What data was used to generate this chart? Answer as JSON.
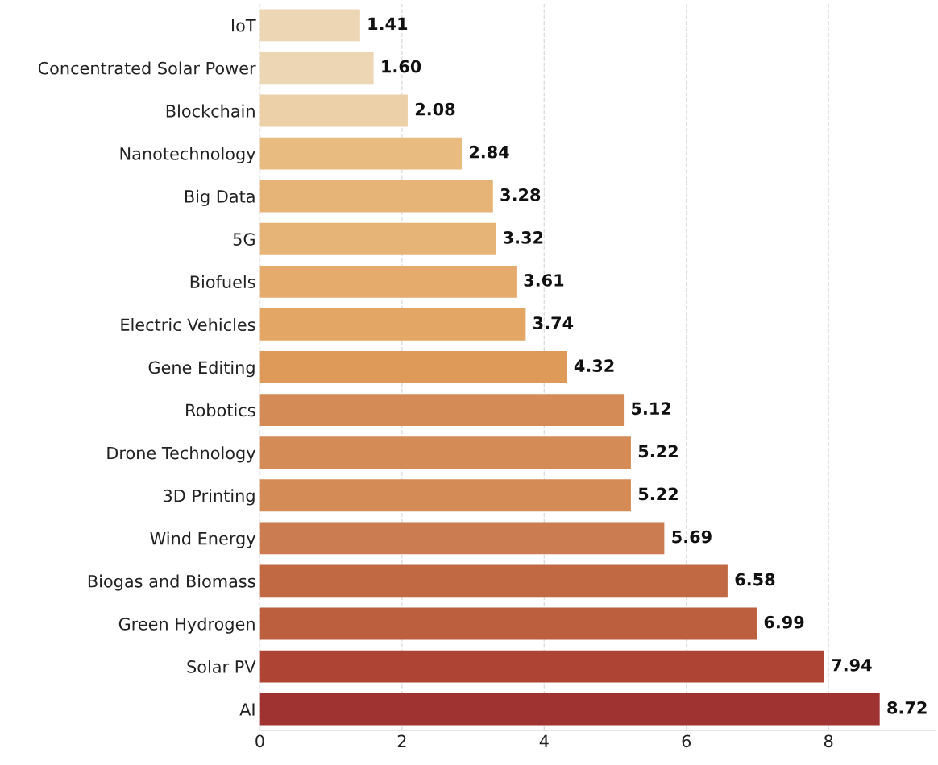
{
  "chart_data": {
    "type": "bar",
    "orientation": "horizontal",
    "categories": [
      "IoT",
      "Concentrated Solar Power",
      "Blockchain",
      "Nanotechnology",
      "Big Data",
      "5G",
      "Biofuels",
      "Electric Vehicles",
      "Gene Editing",
      "Robotics",
      "Drone Technology",
      "3D Printing",
      "Wind Energy",
      "Biogas and Biomass",
      "Green Hydrogen",
      "Solar PV",
      "AI"
    ],
    "values": [
      1.41,
      1.6,
      2.08,
      2.84,
      3.28,
      3.32,
      3.61,
      3.74,
      4.32,
      5.12,
      5.22,
      5.22,
      5.69,
      6.58,
      6.99,
      7.94,
      8.72
    ],
    "colors": [
      "#ecd6b4",
      "#ecd6b4",
      "#ebd0a8",
      "#e8bb80",
      "#e7b477",
      "#e7b477",
      "#e5ab6c",
      "#e3a664",
      "#dd9a58",
      "#d48b56",
      "#d48b56",
      "#d48b56",
      "#cb7c50",
      "#c06942",
      "#bc5f3e",
      "#ad4434",
      "#9e3332"
    ],
    "value_labels": [
      "1.41",
      "1.60",
      "2.08",
      "2.84",
      "3.28",
      "3.32",
      "3.61",
      "3.74",
      "4.32",
      "5.12",
      "5.22",
      "5.22",
      "5.69",
      "6.58",
      "6.99",
      "7.94",
      "8.72"
    ],
    "xlim": [
      0,
      9.5
    ],
    "xticks": [
      0,
      2,
      4,
      6,
      8
    ],
    "grid": "x"
  }
}
